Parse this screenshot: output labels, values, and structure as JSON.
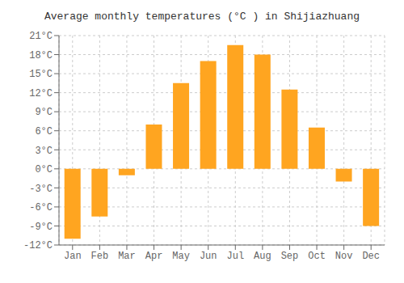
{
  "chart_data": {
    "type": "bar",
    "title": "Average monthly temperatures (°C ) in Shijiazhuang",
    "categories": [
      "Jan",
      "Feb",
      "Mar",
      "Apr",
      "May",
      "Jun",
      "Jul",
      "Aug",
      "Sep",
      "Oct",
      "Nov",
      "Dec"
    ],
    "values": [
      -11,
      -7.5,
      -1,
      7,
      13.5,
      17,
      19.5,
      18,
      12.5,
      6.5,
      -2,
      -9
    ],
    "color": "#FFA520",
    "ylim": [
      -12,
      21
    ],
    "yticks": [
      {
        "value": -12,
        "label": "-12°C"
      },
      {
        "value": -9,
        "label": "-9°C"
      },
      {
        "value": -6,
        "label": "-6°C"
      },
      {
        "value": -3,
        "label": "-3°C"
      },
      {
        "value": 0,
        "label": "0°C"
      },
      {
        "value": 3,
        "label": "3°C"
      },
      {
        "value": 6,
        "label": "6°C"
      },
      {
        "value": 9,
        "label": "9°C"
      },
      {
        "value": 12,
        "label": "12°C"
      },
      {
        "value": 15,
        "label": "15°C"
      },
      {
        "value": 18,
        "label": "18°C"
      },
      {
        "value": 21,
        "label": "21°C"
      }
    ],
    "grid": true
  }
}
